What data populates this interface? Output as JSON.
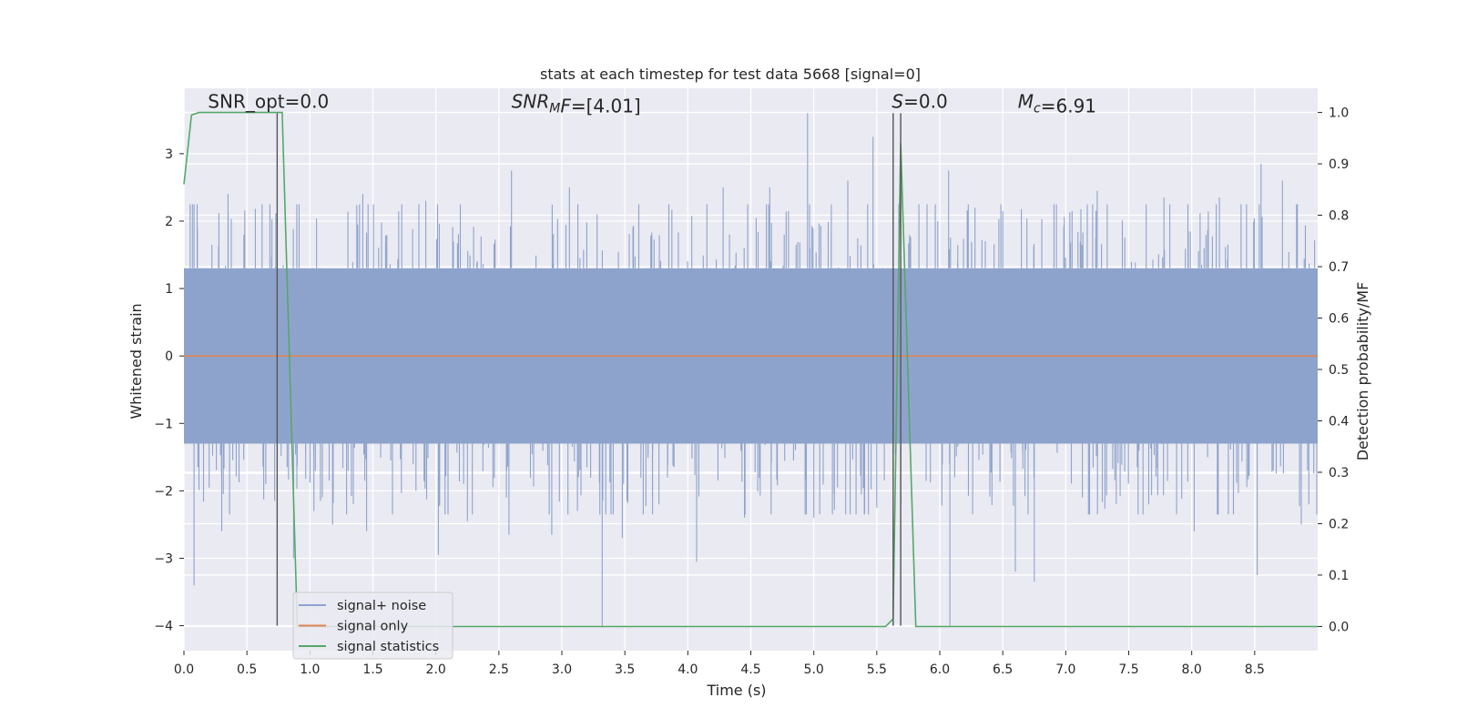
{
  "chart_data": {
    "type": "line",
    "title": "stats at each timestep for test data 5668 [signal=0]",
    "xlabel": "Time (s)",
    "ylabel": "Whitened strain",
    "y2label": "Detection probability/MF",
    "xlim": [
      0.0,
      9.0
    ],
    "ylim": [
      -4.37,
      3.97
    ],
    "y2lim": [
      -0.047,
      1.047
    ],
    "xticks": [
      0.0,
      0.5,
      1.0,
      1.5,
      2.0,
      2.5,
      3.0,
      3.5,
      4.0,
      4.5,
      5.0,
      5.5,
      6.0,
      6.5,
      7.0,
      7.5,
      8.0,
      8.5
    ],
    "xtick_labels": [
      "0.0",
      "0.5",
      "1.0",
      "1.5",
      "2.0",
      "2.5",
      "3.0",
      "3.5",
      "4.0",
      "4.5",
      "5.0",
      "5.5",
      "6.0",
      "6.5",
      "7.0",
      "7.5",
      "8.0",
      "8.5"
    ],
    "yticks": [
      3,
      2,
      1,
      0,
      -1,
      -2,
      -3,
      -4
    ],
    "ytick_labels": [
      "3",
      "2",
      "1",
      "0",
      "−1",
      "−2",
      "−3",
      "−4"
    ],
    "y2ticks": [
      1.0,
      0.9,
      0.8,
      0.7,
      0.6,
      0.5,
      0.4,
      0.3,
      0.2,
      0.1,
      0.0
    ],
    "y2tick_labels": [
      "1.0",
      "0.9",
      "0.8",
      "0.7",
      "0.6",
      "0.5",
      "0.4",
      "0.3",
      "0.2",
      "0.1",
      "0.0"
    ],
    "grid": true,
    "legend_position": "lower-left",
    "annotations": [
      {
        "name": "snr-opt",
        "x": 0.19,
        "y": 3.68,
        "parts": [
          {
            "t": "SNR_opt=0.0"
          }
        ]
      },
      {
        "name": "snr-mf",
        "x": 2.6,
        "y": 3.68,
        "parts": [
          {
            "t": "SNR",
            "i": true
          },
          {
            "t": "M",
            "i": true,
            "sub": true
          },
          {
            "t": "F",
            "i": true
          },
          {
            "t": "=[4.01]"
          }
        ]
      },
      {
        "name": "s-value",
        "x": 5.62,
        "y": 3.68,
        "parts": [
          {
            "t": "S",
            "i": true
          },
          {
            "t": "=0.0"
          }
        ]
      },
      {
        "name": "mc-value",
        "x": 6.62,
        "y": 3.68,
        "parts": [
          {
            "t": "M",
            "i": true
          },
          {
            "t": "c",
            "i": true,
            "sub": true
          },
          {
            "t": "=6.91"
          }
        ]
      }
    ],
    "vertical_lines": [
      {
        "x": 0.74,
        "y_from": -4.0,
        "y_to": 3.6
      },
      {
        "x": 5.63,
        "y_from": -4.0,
        "y_to": 3.6
      },
      {
        "x": 5.69,
        "y_from": -4.0,
        "y_to": 3.6
      }
    ],
    "horizontal_bands": [
      1.3,
      0.55,
      -0.22,
      -0.98,
      -1.74
    ],
    "series": [
      {
        "name": "signal+ noise",
        "color": "#8ea3cb",
        "axis": "left",
        "kind": "noise",
        "sample_rate_hz": 2048,
        "envelope": 1.3,
        "spike_points": [
          [
            0.08,
            -3.4
          ],
          [
            0.08,
            2.25
          ],
          [
            0.2,
            -1.95
          ],
          [
            0.3,
            -2.6
          ],
          [
            0.35,
            2.4
          ],
          [
            0.62,
            2.25
          ],
          [
            0.65,
            -1.9
          ],
          [
            0.72,
            -2.15
          ],
          [
            0.87,
            -3.0
          ],
          [
            1.18,
            -2.5
          ],
          [
            1.42,
            2.4
          ],
          [
            1.45,
            -2.6
          ],
          [
            1.92,
            2.3
          ],
          [
            2.02,
            -2.95
          ],
          [
            2.25,
            -2.45
          ],
          [
            2.58,
            -2.65
          ],
          [
            2.6,
            2.75
          ],
          [
            2.92,
            -2.65
          ],
          [
            3.06,
            2.5
          ],
          [
            3.28,
            2.1
          ],
          [
            3.32,
            -4.0
          ],
          [
            3.48,
            -2.7
          ],
          [
            3.72,
            -2.35
          ],
          [
            4.07,
            -3.05
          ],
          [
            4.28,
            2.5
          ],
          [
            4.45,
            -2.4
          ],
          [
            4.65,
            2.5
          ],
          [
            4.95,
            3.6
          ],
          [
            5.0,
            -2.4
          ],
          [
            5.27,
            2.6
          ],
          [
            5.47,
            3.25
          ],
          [
            5.5,
            -2.25
          ],
          [
            6.07,
            2.75
          ],
          [
            6.08,
            -4.0
          ],
          [
            6.28,
            2.2
          ],
          [
            6.5,
            2.15
          ],
          [
            6.6,
            -3.2
          ],
          [
            6.75,
            -3.35
          ],
          [
            7.05,
            2.15
          ],
          [
            7.25,
            2.45
          ],
          [
            7.78,
            2.35
          ],
          [
            8.02,
            -2.6
          ],
          [
            8.22,
            2.35
          ],
          [
            8.52,
            -3.25
          ],
          [
            8.55,
            2.85
          ],
          [
            8.72,
            2.6
          ],
          [
            8.87,
            -2.5
          ],
          [
            8.93,
            -2.2
          ]
        ]
      },
      {
        "name": "signal only",
        "color": "#dd8452",
        "axis": "left",
        "kind": "line",
        "x": [
          0.0,
          9.0
        ],
        "y": [
          0.0,
          0.0
        ]
      },
      {
        "name": "signal statistics",
        "color": "#55a868",
        "axis": "right",
        "kind": "line",
        "x": [
          0.0,
          0.06,
          0.12,
          0.18,
          0.24,
          0.3,
          0.36,
          0.42,
          0.48,
          0.54,
          0.6,
          0.66,
          0.72,
          0.78,
          0.84,
          0.9,
          0.96,
          1.5,
          2.5,
          3.5,
          4.5,
          5.5,
          5.57,
          5.63,
          5.69,
          5.75,
          5.81,
          5.87,
          6.5,
          7.5,
          8.5,
          9.0
        ],
        "y": [
          0.86,
          0.995,
          1.0,
          1.0,
          1.0,
          1.0,
          1.0,
          1.0,
          1.0,
          1.0,
          1.0,
          1.0,
          1.0,
          1.0,
          0.5,
          0.0,
          0.0,
          0.0,
          0.0,
          0.0,
          0.0,
          0.0,
          0.0,
          0.015,
          0.94,
          0.47,
          0.0,
          0.0,
          0.0,
          0.0,
          0.0,
          0.0
        ]
      }
    ]
  }
}
